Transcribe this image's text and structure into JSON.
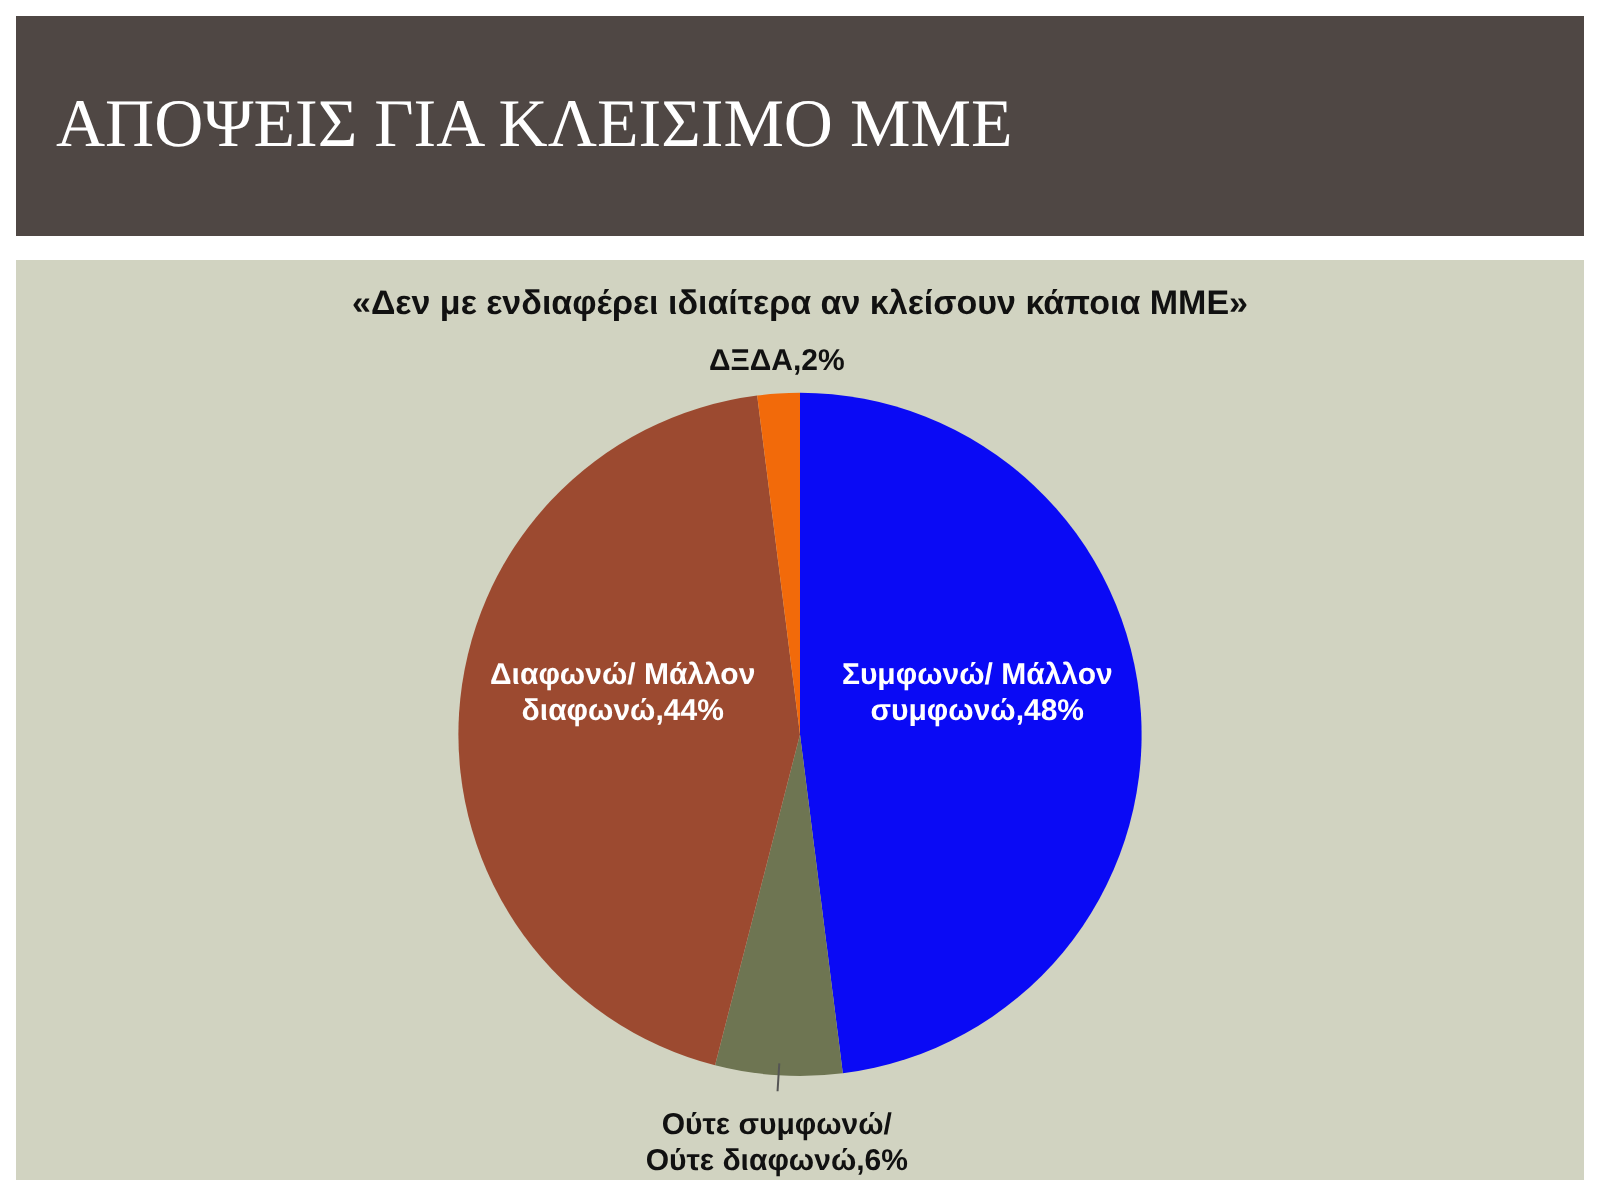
{
  "chart_data": {
    "type": "pie",
    "title": "ΑΠΟΨΕΙΣ ΓΙΑ ΚΛΕΙΣΙΜΟ ΜΜΕ",
    "subtitle": "«Δεν με ενδιαφέρει ιδιαίτερα αν κλείσουν κάποια ΜΜΕ»",
    "categories": [
      "Συμφωνώ/ Μάλλον συμφωνώ",
      "Ούτε συμφωνώ/ Ούτε διαφωνώ",
      "Διαφωνώ/ Μάλλον διαφωνώ",
      "ΔΞΔΑ"
    ],
    "values": [
      48,
      6,
      44,
      2
    ],
    "colors": [
      "#0a0af5",
      "#6e7552",
      "#9c4a30",
      "#f26a0a"
    ],
    "value_labels": [
      "48%",
      "6%",
      "44%",
      "2%"
    ]
  }
}
